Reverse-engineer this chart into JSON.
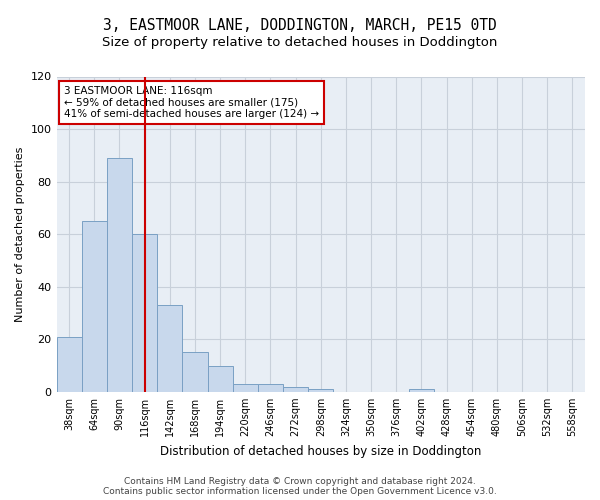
{
  "title": "3, EASTMOOR LANE, DODDINGTON, MARCH, PE15 0TD",
  "subtitle": "Size of property relative to detached houses in Doddington",
  "xlabel": "Distribution of detached houses by size in Doddington",
  "ylabel": "Number of detached properties",
  "categories": [
    "38sqm",
    "64sqm",
    "90sqm",
    "116sqm",
    "142sqm",
    "168sqm",
    "194sqm",
    "220sqm",
    "246sqm",
    "272sqm",
    "298sqm",
    "324sqm",
    "350sqm",
    "376sqm",
    "402sqm",
    "428sqm",
    "454sqm",
    "480sqm",
    "506sqm",
    "532sqm",
    "558sqm"
  ],
  "values": [
    21,
    65,
    89,
    60,
    33,
    15,
    10,
    3,
    3,
    2,
    1,
    0,
    0,
    0,
    1,
    0,
    0,
    0,
    0,
    0,
    0
  ],
  "bar_color": "#c8d8ec",
  "bar_edge_color": "#7aa0c4",
  "highlight_line_index": 3,
  "highlight_line_color": "#cc0000",
  "annotation_line1": "3 EASTMOOR LANE: 116sqm",
  "annotation_line2": "← 59% of detached houses are smaller (175)",
  "annotation_line3": "41% of semi-detached houses are larger (124) →",
  "annotation_box_facecolor": "white",
  "annotation_box_edgecolor": "#cc0000",
  "ylim": [
    0,
    120
  ],
  "yticks": [
    0,
    20,
    40,
    60,
    80,
    100,
    120
  ],
  "plot_bg_color": "#e8eef5",
  "grid_color": "#c8d0da",
  "title_fontsize": 10.5,
  "subtitle_fontsize": 9.5,
  "xlabel_fontsize": 8.5,
  "ylabel_fontsize": 8,
  "tick_fontsize": 7,
  "footer_text": "Contains HM Land Registry data © Crown copyright and database right 2024.\nContains public sector information licensed under the Open Government Licence v3.0.",
  "footer_fontsize": 6.5
}
